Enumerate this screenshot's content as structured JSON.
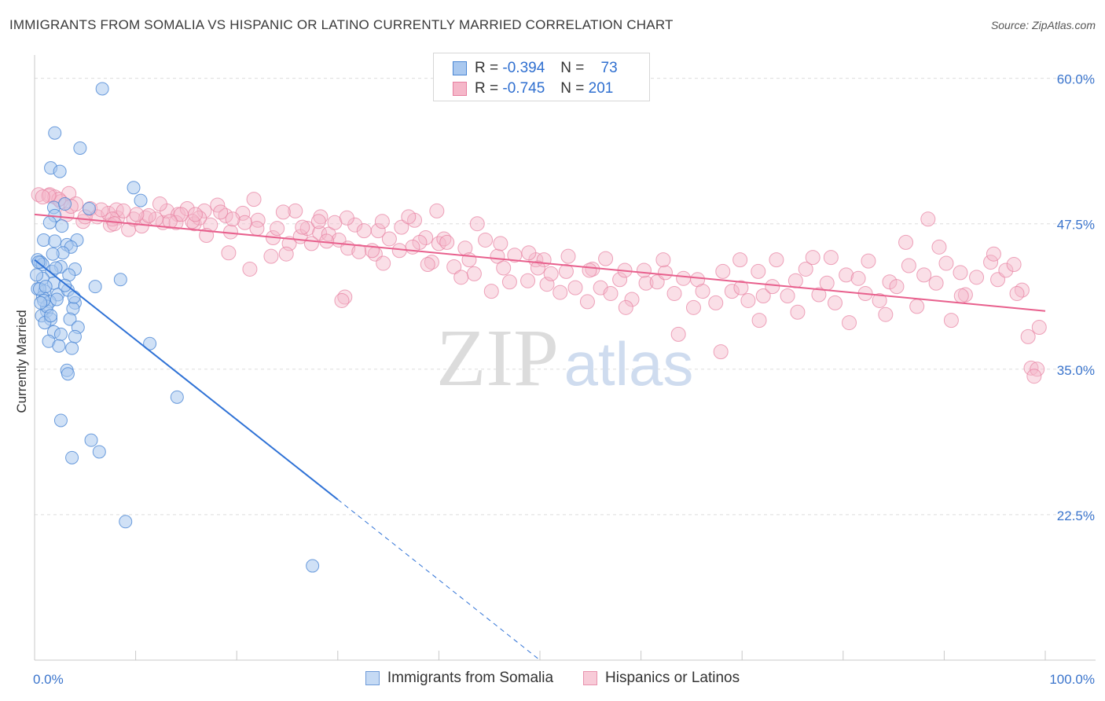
{
  "title": "IMMIGRANTS FROM SOMALIA VS HISPANIC OR LATINO CURRENTLY MARRIED CORRELATION CHART",
  "source": "Source: ZipAtlas.com",
  "watermark": {
    "zip": "ZIP",
    "atlas": "atlas"
  },
  "legend_top": {
    "rows": [
      {
        "r_label": "R =",
        "r_value": "-0.394",
        "n_label": "N =",
        "n_value": "73"
      },
      {
        "r_label": "R =",
        "r_value": "-0.745",
        "n_label": "N =",
        "n_value": "201"
      }
    ]
  },
  "colors": {
    "somalia_fill": "#a9c8ef",
    "somalia_stroke": "#4a86d4",
    "somalia_line": "#2f72d6",
    "hispanic_fill": "#f5b7c9",
    "hispanic_stroke": "#e77fa0",
    "hispanic_line": "#e8608d",
    "axis_label_blue": "#3a74cc",
    "grid": "#dddddd"
  },
  "chart_data": {
    "type": "scatter",
    "title": "IMMIGRANTS FROM SOMALIA VS HISPANIC OR LATINO CURRENTLY MARRIED CORRELATION CHART",
    "xlabel": "",
    "ylabel": "Currently Married",
    "xlim": [
      0,
      100
    ],
    "ylim": [
      10,
      62
    ],
    "x_tick_labels": [
      "0.0%",
      "100.0%"
    ],
    "y_ticks": [
      22.5,
      35.0,
      47.5,
      60.0
    ],
    "y_tick_labels": [
      "22.5%",
      "35.0%",
      "47.5%",
      "60.0%"
    ],
    "grid": true,
    "legend_position": "bottom-center",
    "series": [
      {
        "name": "Immigrants from Somalia",
        "R": -0.394,
        "N": 73,
        "trend": {
          "x": [
            0.0,
            30.0
          ],
          "y": [
            44.4,
            23.8
          ],
          "dashed_to": [
            50.0,
            10.0
          ]
        },
        "points": [
          [
            6.7,
            59.1
          ],
          [
            2.0,
            55.3
          ],
          [
            4.5,
            54.0
          ],
          [
            1.6,
            52.3
          ],
          [
            2.5,
            52.0
          ],
          [
            9.8,
            50.6
          ],
          [
            10.5,
            49.5
          ],
          [
            1.9,
            48.9
          ],
          [
            3.0,
            49.2
          ],
          [
            5.4,
            48.8
          ],
          [
            2.0,
            48.2
          ],
          [
            1.5,
            47.6
          ],
          [
            2.7,
            47.3
          ],
          [
            0.9,
            46.1
          ],
          [
            2.0,
            46.0
          ],
          [
            4.2,
            46.1
          ],
          [
            3.2,
            45.7
          ],
          [
            3.6,
            45.5
          ],
          [
            0.3,
            44.4
          ],
          [
            0.6,
            44.2
          ],
          [
            0.8,
            44.0
          ],
          [
            2.6,
            43.8
          ],
          [
            4.0,
            43.6
          ],
          [
            1.7,
            43.4
          ],
          [
            3.4,
            43.1
          ],
          [
            0.8,
            42.8
          ],
          [
            1.9,
            42.4
          ],
          [
            6.0,
            42.1
          ],
          [
            8.5,
            42.7
          ],
          [
            0.3,
            41.9
          ],
          [
            1.0,
            41.7
          ],
          [
            2.3,
            41.4
          ],
          [
            3.3,
            41.8
          ],
          [
            0.8,
            41.2
          ],
          [
            1.5,
            40.8
          ],
          [
            4.0,
            40.7
          ],
          [
            3.8,
            40.2
          ],
          [
            1.2,
            40.0
          ],
          [
            0.7,
            39.6
          ],
          [
            1.6,
            39.3
          ],
          [
            3.5,
            39.3
          ],
          [
            1.0,
            39.0
          ],
          [
            4.3,
            38.6
          ],
          [
            1.9,
            38.2
          ],
          [
            2.6,
            38.0
          ],
          [
            1.4,
            37.4
          ],
          [
            4.0,
            37.8
          ],
          [
            11.4,
            37.2
          ],
          [
            2.4,
            37.0
          ],
          [
            3.7,
            36.8
          ],
          [
            3.2,
            34.9
          ],
          [
            3.3,
            34.6
          ],
          [
            14.1,
            32.6
          ],
          [
            2.6,
            30.6
          ],
          [
            5.6,
            28.9
          ],
          [
            6.4,
            27.9
          ],
          [
            3.7,
            27.4
          ],
          [
            9.0,
            21.9
          ],
          [
            27.5,
            18.1
          ],
          [
            0.4,
            44.2
          ],
          [
            0.5,
            41.9
          ],
          [
            1.2,
            40.4
          ],
          [
            2.1,
            43.7
          ],
          [
            0.9,
            40.9
          ],
          [
            3.0,
            42.2
          ],
          [
            1.6,
            39.6
          ],
          [
            2.8,
            45.0
          ],
          [
            0.2,
            43.1
          ],
          [
            1.1,
            42.1
          ],
          [
            2.2,
            41.0
          ],
          [
            3.9,
            41.2
          ],
          [
            0.6,
            40.7
          ],
          [
            1.8,
            44.9
          ]
        ]
      },
      {
        "name": "Hispanics or Latinos",
        "R": -0.745,
        "N": 201,
        "trend": {
          "x": [
            0.0,
            100.0
          ],
          "y": [
            48.3,
            40.0
          ]
        },
        "points": [
          [
            0.4,
            50.0
          ],
          [
            1.5,
            50.0
          ],
          [
            2.0,
            49.8
          ],
          [
            3.4,
            50.1
          ],
          [
            2.6,
            49.4
          ],
          [
            4.1,
            49.2
          ],
          [
            5.5,
            48.8
          ],
          [
            3.2,
            48.3
          ],
          [
            6.2,
            48.1
          ],
          [
            4.8,
            47.7
          ],
          [
            7.3,
            48.4
          ],
          [
            8.2,
            48.0
          ],
          [
            8.1,
            48.7
          ],
          [
            7.5,
            47.4
          ],
          [
            9.3,
            47.0
          ],
          [
            10.6,
            47.3
          ],
          [
            11.0,
            48.0
          ],
          [
            12.7,
            47.6
          ],
          [
            13.1,
            48.6
          ],
          [
            14.2,
            48.3
          ],
          [
            14.0,
            47.6
          ],
          [
            15.1,
            48.8
          ],
          [
            15.8,
            47.5
          ],
          [
            16.8,
            48.6
          ],
          [
            17.4,
            47.4
          ],
          [
            16.3,
            48.0
          ],
          [
            18.1,
            49.1
          ],
          [
            18.9,
            48.2
          ],
          [
            19.4,
            46.8
          ],
          [
            20.6,
            48.4
          ],
          [
            21.7,
            49.6
          ],
          [
            22.1,
            47.8
          ],
          [
            23.6,
            46.3
          ],
          [
            24.0,
            47.1
          ],
          [
            25.2,
            45.8
          ],
          [
            25.8,
            48.6
          ],
          [
            26.3,
            46.4
          ],
          [
            27.0,
            47.1
          ],
          [
            28.3,
            48.1
          ],
          [
            28.2,
            46.7
          ],
          [
            29.1,
            46.6
          ],
          [
            30.1,
            46.1
          ],
          [
            31.0,
            45.4
          ],
          [
            32.1,
            45.1
          ],
          [
            31.7,
            47.4
          ],
          [
            32.6,
            46.9
          ],
          [
            33.7,
            44.9
          ],
          [
            34.0,
            46.9
          ],
          [
            35.1,
            46.2
          ],
          [
            36.3,
            47.2
          ],
          [
            37.6,
            47.8
          ],
          [
            38.7,
            46.3
          ],
          [
            38.1,
            45.9
          ],
          [
            40.0,
            45.8
          ],
          [
            39.3,
            44.2
          ],
          [
            40.5,
            46.2
          ],
          [
            41.5,
            43.8
          ],
          [
            42.6,
            45.4
          ],
          [
            43.0,
            44.4
          ],
          [
            44.6,
            46.1
          ],
          [
            45.8,
            44.7
          ],
          [
            46.4,
            43.7
          ],
          [
            47.0,
            42.5
          ],
          [
            48.8,
            42.6
          ],
          [
            49.6,
            44.4
          ],
          [
            50.7,
            42.3
          ],
          [
            51.1,
            43.2
          ],
          [
            52.0,
            41.6
          ],
          [
            52.6,
            43.4
          ],
          [
            53.5,
            42.0
          ],
          [
            54.7,
            40.8
          ],
          [
            55.2,
            43.6
          ],
          [
            56.0,
            42.0
          ],
          [
            57.0,
            41.5
          ],
          [
            57.9,
            42.7
          ],
          [
            58.4,
            43.5
          ],
          [
            59.1,
            41.0
          ],
          [
            60.5,
            42.4
          ],
          [
            61.6,
            42.5
          ],
          [
            62.4,
            43.3
          ],
          [
            63.3,
            41.5
          ],
          [
            64.2,
            42.8
          ],
          [
            65.6,
            42.7
          ],
          [
            66.1,
            41.7
          ],
          [
            67.4,
            40.7
          ],
          [
            68.1,
            43.4
          ],
          [
            69.0,
            41.7
          ],
          [
            69.9,
            42.0
          ],
          [
            70.6,
            40.9
          ],
          [
            71.6,
            43.4
          ],
          [
            72.1,
            41.3
          ],
          [
            73.0,
            42.1
          ],
          [
            74.5,
            41.3
          ],
          [
            75.3,
            42.6
          ],
          [
            76.3,
            43.6
          ],
          [
            77.6,
            41.4
          ],
          [
            78.4,
            42.4
          ],
          [
            79.2,
            40.7
          ],
          [
            80.3,
            43.1
          ],
          [
            81.5,
            42.8
          ],
          [
            82.2,
            41.5
          ],
          [
            83.6,
            40.9
          ],
          [
            84.6,
            42.5
          ],
          [
            85.3,
            42.1
          ],
          [
            86.5,
            43.9
          ],
          [
            87.3,
            40.4
          ],
          [
            88.0,
            43.1
          ],
          [
            89.2,
            42.4
          ],
          [
            90.2,
            44.1
          ],
          [
            91.6,
            43.3
          ],
          [
            92.1,
            41.4
          ],
          [
            93.2,
            42.9
          ],
          [
            94.6,
            44.2
          ],
          [
            95.3,
            42.7
          ],
          [
            96.1,
            43.5
          ],
          [
            96.9,
            44.0
          ],
          [
            97.7,
            41.8
          ],
          [
            98.3,
            37.8
          ],
          [
            98.6,
            35.1
          ],
          [
            99.4,
            38.6
          ],
          [
            99.2,
            35.0
          ],
          [
            98.9,
            34.4
          ],
          [
            97.2,
            41.5
          ],
          [
            94.9,
            44.9
          ],
          [
            91.7,
            41.3
          ],
          [
            90.7,
            39.2
          ],
          [
            89.5,
            45.5
          ],
          [
            88.4,
            47.9
          ],
          [
            86.2,
            45.9
          ],
          [
            84.2,
            39.7
          ],
          [
            82.5,
            44.3
          ],
          [
            80.6,
            39.0
          ],
          [
            78.8,
            44.6
          ],
          [
            77.0,
            44.6
          ],
          [
            75.5,
            39.9
          ],
          [
            73.4,
            44.4
          ],
          [
            71.7,
            39.2
          ],
          [
            69.8,
            44.4
          ],
          [
            67.9,
            36.5
          ],
          [
            65.2,
            40.3
          ],
          [
            63.7,
            38.0
          ],
          [
            62.2,
            44.4
          ],
          [
            60.3,
            43.5
          ],
          [
            58.5,
            40.3
          ],
          [
            56.5,
            44.5
          ],
          [
            54.9,
            43.5
          ],
          [
            52.8,
            44.7
          ],
          [
            50.4,
            44.4
          ],
          [
            48.9,
            45.0
          ],
          [
            47.5,
            44.8
          ],
          [
            45.2,
            41.7
          ],
          [
            43.5,
            43.2
          ],
          [
            42.2,
            42.9
          ],
          [
            40.8,
            45.9
          ],
          [
            38.9,
            44.0
          ],
          [
            37.4,
            45.5
          ],
          [
            36.1,
            45.2
          ],
          [
            34.5,
            44.1
          ],
          [
            33.4,
            45.2
          ],
          [
            30.7,
            41.2
          ],
          [
            30.4,
            40.9
          ],
          [
            29.7,
            47.6
          ],
          [
            28.9,
            46.0
          ],
          [
            27.4,
            45.8
          ],
          [
            26.5,
            47.2
          ],
          [
            24.9,
            44.9
          ],
          [
            23.4,
            44.7
          ],
          [
            22.0,
            47.1
          ],
          [
            20.8,
            47.6
          ],
          [
            19.6,
            47.9
          ],
          [
            18.4,
            48.5
          ],
          [
            17.0,
            46.5
          ],
          [
            15.6,
            47.7
          ],
          [
            14.5,
            48.3
          ],
          [
            13.4,
            47.7
          ],
          [
            12.0,
            47.9
          ],
          [
            11.3,
            48.2
          ],
          [
            9.8,
            47.9
          ],
          [
            8.8,
            48.6
          ],
          [
            7.7,
            47.9
          ],
          [
            6.6,
            48.7
          ],
          [
            5.0,
            48.1
          ],
          [
            3.6,
            49.0
          ],
          [
            2.4,
            49.6
          ],
          [
            1.4,
            49.9
          ],
          [
            0.8,
            49.8
          ],
          [
            7.9,
            47.5
          ],
          [
            10.1,
            48.3
          ],
          [
            12.4,
            49.2
          ],
          [
            15.9,
            48.3
          ],
          [
            19.2,
            45.0
          ],
          [
            21.3,
            43.6
          ],
          [
            24.6,
            48.5
          ],
          [
            28.1,
            47.7
          ],
          [
            30.9,
            48.0
          ],
          [
            34.4,
            47.7
          ],
          [
            37.0,
            48.1
          ],
          [
            39.8,
            48.6
          ],
          [
            43.8,
            47.5
          ],
          [
            46.1,
            45.8
          ],
          [
            49.8,
            43.7
          ]
        ]
      }
    ]
  },
  "legend_bottom": {
    "items": [
      "Immigrants from Somalia",
      "Hispanics or Latinos"
    ]
  }
}
